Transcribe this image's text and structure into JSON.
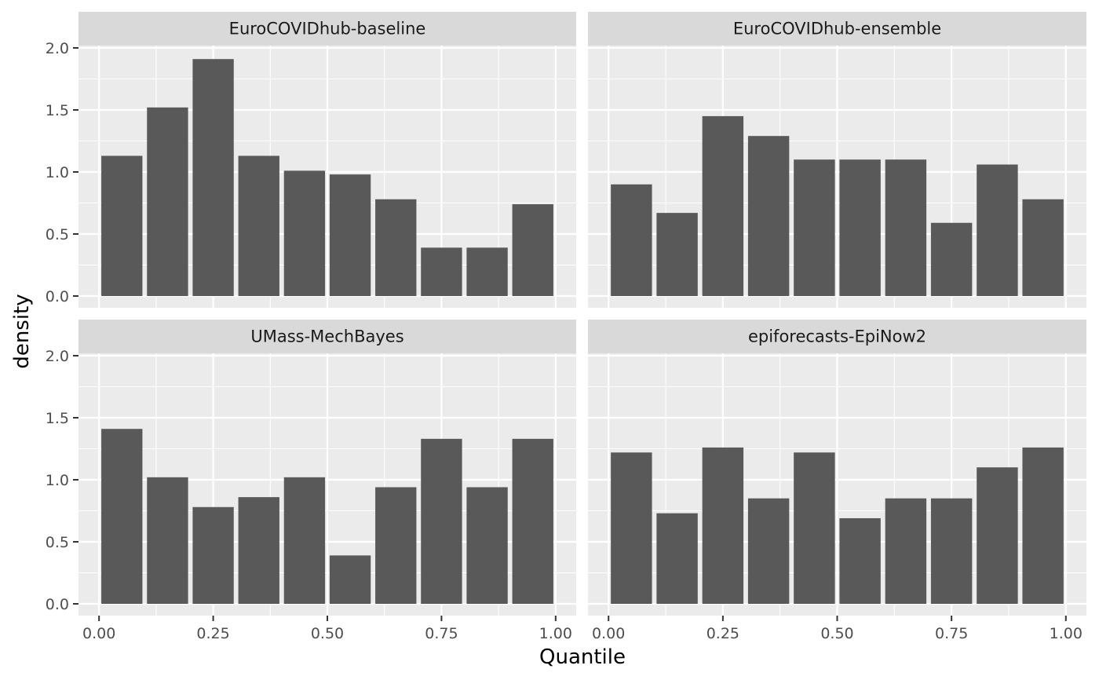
{
  "chart_data": {
    "type": "bar",
    "layout": "facet_wrap 2x2",
    "xlabel": "Quantile",
    "ylabel": "density",
    "xlim": [
      0,
      1
    ],
    "ylim": [
      0,
      2
    ],
    "x_ticks": [
      "0.00",
      "0.25",
      "0.50",
      "0.75",
      "1.00"
    ],
    "y_ticks": [
      "0.0",
      "0.5",
      "1.0",
      "1.5",
      "2.0"
    ],
    "bin_centers": [
      0.05,
      0.15,
      0.25,
      0.35,
      0.45,
      0.55,
      0.65,
      0.75,
      0.85,
      0.95
    ],
    "grid": true,
    "bar_color": "#595959",
    "panel_background": "#ebebeb",
    "strip_background": "#d9d9d9",
    "panels": [
      {
        "title": "EuroCOVIDhub-baseline",
        "values": [
          1.13,
          1.52,
          1.91,
          1.13,
          1.01,
          0.98,
          0.78,
          0.39,
          0.39,
          0.74
        ]
      },
      {
        "title": "EuroCOVIDhub-ensemble",
        "values": [
          0.9,
          0.67,
          1.45,
          1.29,
          1.1,
          1.1,
          1.1,
          0.59,
          1.06,
          0.78
        ]
      },
      {
        "title": "UMass-MechBayes",
        "values": [
          1.41,
          1.02,
          0.78,
          0.86,
          1.02,
          0.39,
          0.94,
          1.33,
          0.94,
          1.33
        ]
      },
      {
        "title": "epiforecasts-EpiNow2",
        "values": [
          1.22,
          0.73,
          1.26,
          0.85,
          1.22,
          0.69,
          0.85,
          0.85,
          1.1,
          1.26
        ]
      }
    ]
  }
}
